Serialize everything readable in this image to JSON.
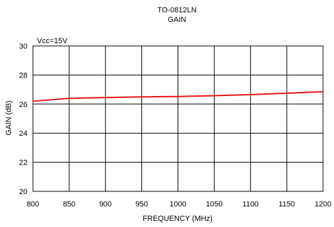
{
  "chart_data": {
    "type": "line",
    "title": "TO-0812LN",
    "subtitle": "GAIN",
    "xlabel": "FREQUENCY (MHz)",
    "ylabel": "GAIN (dB)",
    "annotation": "Vcc=15V",
    "xlim": [
      800,
      1200
    ],
    "ylim": [
      20,
      30
    ],
    "x_ticks": [
      800,
      850,
      900,
      950,
      1000,
      1050,
      1100,
      1150,
      1200
    ],
    "y_ticks": [
      20,
      22,
      24,
      26,
      28,
      30
    ],
    "grid": true,
    "series": [
      {
        "color": "#e8141b",
        "x": [
          800,
          850,
          900,
          950,
          1000,
          1050,
          1100,
          1150,
          1200
        ],
        "y": [
          26.2,
          26.4,
          26.45,
          26.5,
          26.52,
          26.58,
          26.65,
          26.75,
          26.85
        ]
      }
    ]
  }
}
